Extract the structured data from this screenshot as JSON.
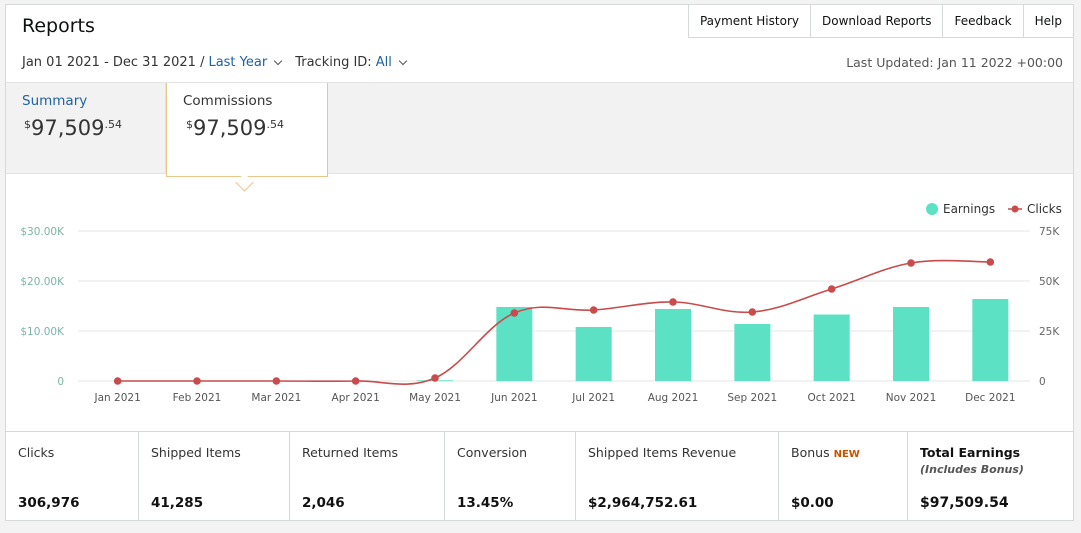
{
  "title": "Reports",
  "topnav": [
    "Payment History",
    "Download Reports",
    "Feedback",
    "Help"
  ],
  "filters": {
    "date_range": "Jan 01 2021 - Dec 31 2021 /",
    "date_preset": "Last Year",
    "tracking_label": "Tracking ID:",
    "tracking_value": "All"
  },
  "last_updated": "Last Updated: Jan 11 2022 +00:00",
  "tabs": [
    {
      "label": "Summary",
      "currency": "$",
      "whole": "97,509",
      "cents": ".54"
    },
    {
      "label": "Commissions",
      "currency": "$",
      "whole": "97,509",
      "cents": ".54"
    }
  ],
  "colors": {
    "earnings": "#5ce1c4",
    "clicks": "#c94b4b",
    "link": "#2162a1",
    "badge": "#c45500"
  },
  "chart_data": {
    "type": "bar+line",
    "categories": [
      "Jan 2021",
      "Feb 2021",
      "Mar 2021",
      "Apr 2021",
      "May 2021",
      "Jun 2021",
      "Jul 2021",
      "Aug 2021",
      "Sep 2021",
      "Oct 2021",
      "Nov 2021",
      "Dec 2021"
    ],
    "series": [
      {
        "name": "Earnings",
        "type": "bar",
        "axis": "left",
        "values": [
          0,
          0,
          0,
          0,
          150,
          14800,
          10800,
          14400,
          11400,
          13300,
          14800,
          16400
        ]
      },
      {
        "name": "Clicks",
        "type": "line",
        "axis": "right",
        "values": [
          0,
          0,
          0,
          0,
          1500,
          34000,
          35500,
          39500,
          34500,
          46000,
          59000,
          59500
        ]
      }
    ],
    "left_axis": {
      "ticks": [
        "0",
        "$10.00K",
        "$20.00K",
        "$30.00K"
      ],
      "range": [
        0,
        30000
      ]
    },
    "right_axis": {
      "ticks": [
        "0",
        "25K",
        "50K",
        "75K"
      ],
      "range": [
        0,
        75000
      ]
    },
    "legend": "top-right",
    "grid": true
  },
  "stats": [
    {
      "label": "Clicks",
      "value": "306,976"
    },
    {
      "label": "Shipped Items",
      "value": "41,285"
    },
    {
      "label": "Returned Items",
      "value": "2,046"
    },
    {
      "label": "Conversion",
      "value": "13.45%"
    },
    {
      "label": "Shipped Items Revenue",
      "value": "$2,964,752.61"
    },
    {
      "label": "Bonus",
      "badge": "NEW",
      "value": "$0.00"
    },
    {
      "label": "Total Earnings",
      "sublabel": "(Includes Bonus)",
      "value": "$97,509.54"
    }
  ]
}
